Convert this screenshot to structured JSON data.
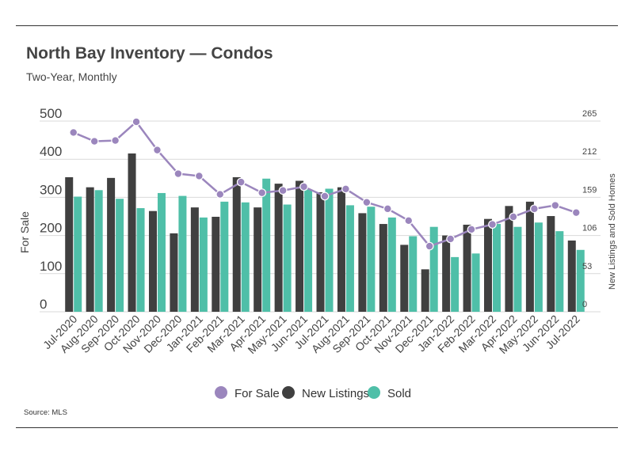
{
  "title": "North Bay Inventory — Condos",
  "subtitle": "Two-Year, Monthly",
  "source": "Source: MLS",
  "colors": {
    "for_sale": "#9b86bd",
    "new_listings": "#404040",
    "sold": "#4fbfa8",
    "grid": "#d9d9d9",
    "axis": "#444444"
  },
  "chart_data": {
    "type": "bar",
    "categories": [
      "Jul-2020",
      "Aug-2020",
      "Sep-2020",
      "Oct-2020",
      "Nov-2020",
      "Dec-2020",
      "Jan-2021",
      "Feb-2021",
      "Mar-2021",
      "Apr-2021",
      "May-2021",
      "Jun-2021",
      "Jul-2021",
      "Aug-2021",
      "Sep-2021",
      "Oct-2021",
      "Nov-2021",
      "Dec-2021",
      "Jan-2022",
      "Feb-2022",
      "Mar-2022",
      "Apr-2022",
      "May-2022",
      "Jun-2022",
      "Jul-2022"
    ],
    "ylabel": "For Sale",
    "y2label": "New Listings and Sold Homes",
    "ylim": [
      0,
      500
    ],
    "y2lim": [
      0,
      265
    ],
    "yticks": [
      "0",
      "100",
      "200",
      "300",
      "400",
      "500"
    ],
    "y2ticks": [
      "0",
      "53",
      "106",
      "159",
      "212",
      "265"
    ],
    "legend": {
      "placement": "bottom-center",
      "items": [
        "For Sale",
        "New Listings",
        "Sold"
      ]
    },
    "series": [
      {
        "name": "For Sale",
        "kind": "line",
        "axis": "left",
        "values": [
          470,
          447,
          449,
          498,
          424,
          362,
          356,
          308,
          340,
          312,
          318,
          328,
          303,
          322,
          287,
          270,
          239,
          172,
          191,
          216,
          229,
          249,
          270,
          279,
          260
        ]
      },
      {
        "name": "New Listings",
        "kind": "bar",
        "axis": "right",
        "values": [
          187,
          173,
          186,
          220,
          140,
          109,
          145,
          132,
          187,
          145,
          178,
          182,
          166,
          173,
          137,
          122,
          93,
          59,
          106,
          121,
          129,
          147,
          153,
          133,
          99
        ]
      },
      {
        "name": "Sold",
        "kind": "bar",
        "axis": "right",
        "values": [
          160,
          169,
          157,
          144,
          165,
          161,
          131,
          153,
          152,
          185,
          149,
          170,
          171,
          148,
          146,
          131,
          105,
          118,
          76,
          81,
          122,
          118,
          124,
          112,
          86
        ]
      }
    ]
  }
}
